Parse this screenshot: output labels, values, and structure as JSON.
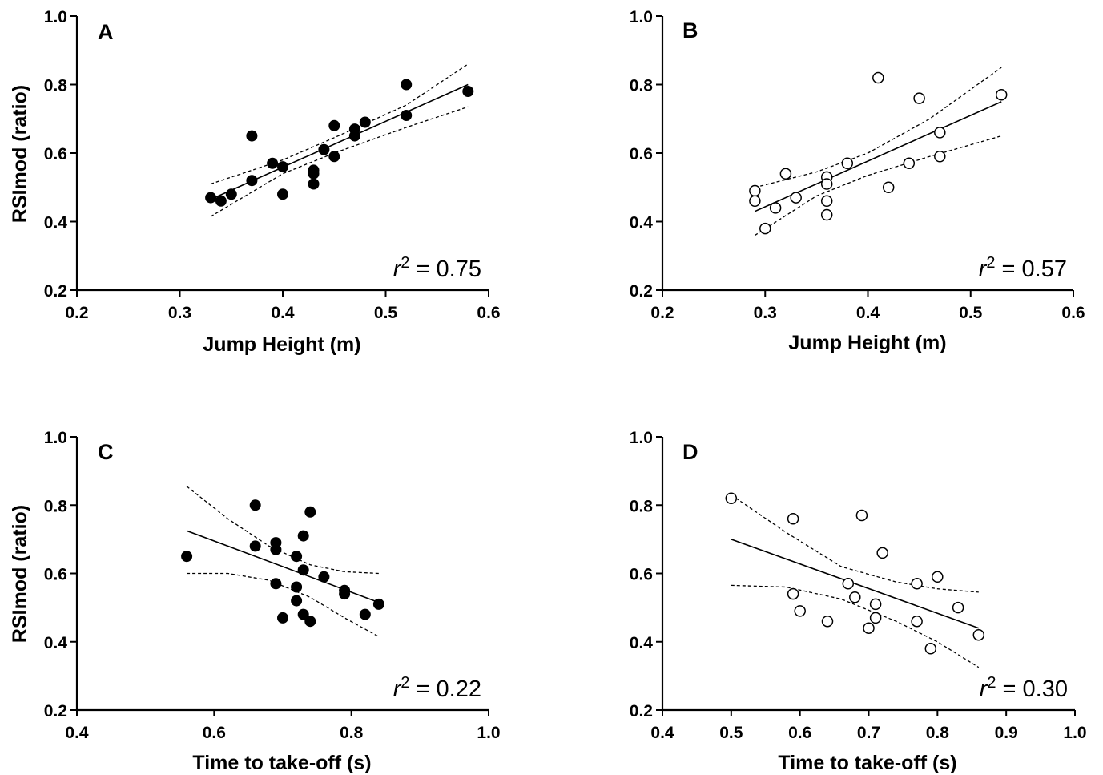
{
  "chart_data": [
    {
      "type": "scatter",
      "panel": "A",
      "xlabel": "Jump Height (m)",
      "ylabel": "RSImod (ratio)",
      "xlim": [
        0.2,
        0.6
      ],
      "ylim": [
        0.2,
        1.0
      ],
      "xticks": [
        "0.2",
        "0.3",
        "0.4",
        "0.5",
        "0.6"
      ],
      "yticks": [
        "0.2",
        "0.4",
        "0.6",
        "0.8",
        "1.0"
      ],
      "r2_prefix": "r",
      "r2_exp": "2",
      "r2_value": " = 0.75",
      "marker": "filled",
      "points": [
        [
          0.33,
          0.47
        ],
        [
          0.34,
          0.46
        ],
        [
          0.35,
          0.48
        ],
        [
          0.37,
          0.52
        ],
        [
          0.37,
          0.65
        ],
        [
          0.39,
          0.57
        ],
        [
          0.4,
          0.56
        ],
        [
          0.4,
          0.48
        ],
        [
          0.43,
          0.55
        ],
        [
          0.43,
          0.54
        ],
        [
          0.43,
          0.51
        ],
        [
          0.44,
          0.61
        ],
        [
          0.45,
          0.59
        ],
        [
          0.45,
          0.68
        ],
        [
          0.47,
          0.65
        ],
        [
          0.47,
          0.67
        ],
        [
          0.48,
          0.69
        ],
        [
          0.52,
          0.8
        ],
        [
          0.52,
          0.71
        ],
        [
          0.58,
          0.78
        ]
      ],
      "fit": [
        [
          0.33,
          0.465
        ],
        [
          0.58,
          0.8
        ]
      ],
      "ci_upper": [
        [
          0.33,
          0.51
        ],
        [
          0.4,
          0.58
        ],
        [
          0.45,
          0.645
        ],
        [
          0.52,
          0.74
        ],
        [
          0.58,
          0.86
        ]
      ],
      "ci_lower": [
        [
          0.33,
          0.415
        ],
        [
          0.4,
          0.54
        ],
        [
          0.45,
          0.6
        ],
        [
          0.52,
          0.675
        ],
        [
          0.58,
          0.735
        ]
      ]
    },
    {
      "type": "scatter",
      "panel": "B",
      "xlabel": "Jump Height (m)",
      "ylabel": "",
      "xlim": [
        0.2,
        0.6
      ],
      "ylim": [
        0.2,
        1.0
      ],
      "xticks": [
        "0.2",
        "0.3",
        "0.4",
        "0.5",
        "0.6"
      ],
      "yticks": [
        "0.2",
        "0.4",
        "0.6",
        "0.8",
        "1.0"
      ],
      "r2_prefix": "r",
      "r2_exp": "2",
      "r2_value": " = 0.57",
      "marker": "open",
      "points": [
        [
          0.29,
          0.49
        ],
        [
          0.29,
          0.46
        ],
        [
          0.3,
          0.38
        ],
        [
          0.31,
          0.44
        ],
        [
          0.32,
          0.54
        ],
        [
          0.33,
          0.47
        ],
        [
          0.36,
          0.53
        ],
        [
          0.36,
          0.51
        ],
        [
          0.36,
          0.46
        ],
        [
          0.36,
          0.42
        ],
        [
          0.38,
          0.57
        ],
        [
          0.41,
          0.82
        ],
        [
          0.42,
          0.5
        ],
        [
          0.44,
          0.57
        ],
        [
          0.45,
          0.76
        ],
        [
          0.47,
          0.66
        ],
        [
          0.47,
          0.59
        ],
        [
          0.53,
          0.77
        ]
      ],
      "fit": [
        [
          0.29,
          0.43
        ],
        [
          0.53,
          0.75
        ]
      ],
      "ci_upper": [
        [
          0.29,
          0.5
        ],
        [
          0.35,
          0.545
        ],
        [
          0.4,
          0.6
        ],
        [
          0.46,
          0.7
        ],
        [
          0.53,
          0.85
        ]
      ],
      "ci_lower": [
        [
          0.29,
          0.36
        ],
        [
          0.35,
          0.475
        ],
        [
          0.4,
          0.535
        ],
        [
          0.46,
          0.59
        ],
        [
          0.53,
          0.65
        ]
      ]
    },
    {
      "type": "scatter",
      "panel": "C",
      "xlabel": "Time to take-off (s)",
      "ylabel": "RSImod (ratio)",
      "xlim": [
        0.4,
        1.0
      ],
      "ylim": [
        0.2,
        1.0
      ],
      "xticks": [
        "0.4",
        "0.6",
        "0.8",
        "1.0"
      ],
      "yticks": [
        "0.2",
        "0.4",
        "0.6",
        "0.8",
        "1.0"
      ],
      "r2_prefix": "r",
      "r2_exp": "2",
      "r2_value": " = 0.22",
      "marker": "filled",
      "points": [
        [
          0.56,
          0.65
        ],
        [
          0.66,
          0.8
        ],
        [
          0.66,
          0.68
        ],
        [
          0.69,
          0.69
        ],
        [
          0.69,
          0.67
        ],
        [
          0.69,
          0.57
        ],
        [
          0.7,
          0.47
        ],
        [
          0.72,
          0.65
        ],
        [
          0.72,
          0.56
        ],
        [
          0.72,
          0.52
        ],
        [
          0.73,
          0.71
        ],
        [
          0.73,
          0.61
        ],
        [
          0.73,
          0.48
        ],
        [
          0.74,
          0.78
        ],
        [
          0.74,
          0.46
        ],
        [
          0.76,
          0.59
        ],
        [
          0.79,
          0.55
        ],
        [
          0.79,
          0.54
        ],
        [
          0.82,
          0.48
        ],
        [
          0.84,
          0.51
        ]
      ],
      "fit": [
        [
          0.56,
          0.725
        ],
        [
          0.84,
          0.515
        ]
      ],
      "ci_upper": [
        [
          0.56,
          0.855
        ],
        [
          0.62,
          0.76
        ],
        [
          0.68,
          0.68
        ],
        [
          0.74,
          0.625
        ],
        [
          0.79,
          0.605
        ],
        [
          0.84,
          0.6
        ]
      ],
      "ci_lower": [
        [
          0.56,
          0.6
        ],
        [
          0.62,
          0.6
        ],
        [
          0.68,
          0.58
        ],
        [
          0.74,
          0.53
        ],
        [
          0.79,
          0.47
        ],
        [
          0.84,
          0.415
        ]
      ]
    },
    {
      "type": "scatter",
      "panel": "D",
      "xlabel": "Time to take-off (s)",
      "ylabel": "",
      "xlim": [
        0.4,
        1.0
      ],
      "ylim": [
        0.2,
        1.0
      ],
      "xticks": [
        "0.4",
        "0.5",
        "0.6",
        "0.7",
        "0.8",
        "0.9",
        "1.0"
      ],
      "yticks": [
        "0.2",
        "0.4",
        "0.6",
        "0.8",
        "1.0"
      ],
      "r2_prefix": "r",
      "r2_exp": "2",
      "r2_value": " = 0.30",
      "marker": "open",
      "points": [
        [
          0.5,
          0.82
        ],
        [
          0.59,
          0.76
        ],
        [
          0.59,
          0.54
        ],
        [
          0.6,
          0.49
        ],
        [
          0.64,
          0.46
        ],
        [
          0.67,
          0.57
        ],
        [
          0.68,
          0.53
        ],
        [
          0.69,
          0.77
        ],
        [
          0.7,
          0.44
        ],
        [
          0.71,
          0.51
        ],
        [
          0.71,
          0.47
        ],
        [
          0.72,
          0.66
        ],
        [
          0.77,
          0.57
        ],
        [
          0.77,
          0.46
        ],
        [
          0.79,
          0.38
        ],
        [
          0.8,
          0.59
        ],
        [
          0.83,
          0.5
        ],
        [
          0.86,
          0.42
        ]
      ],
      "fit": [
        [
          0.5,
          0.7
        ],
        [
          0.86,
          0.44
        ]
      ],
      "ci_upper": [
        [
          0.5,
          0.83
        ],
        [
          0.58,
          0.72
        ],
        [
          0.66,
          0.62
        ],
        [
          0.74,
          0.575
        ],
        [
          0.8,
          0.555
        ],
        [
          0.86,
          0.545
        ]
      ],
      "ci_lower": [
        [
          0.5,
          0.565
        ],
        [
          0.58,
          0.56
        ],
        [
          0.66,
          0.525
        ],
        [
          0.74,
          0.46
        ],
        [
          0.8,
          0.4
        ],
        [
          0.86,
          0.325
        ]
      ]
    }
  ]
}
